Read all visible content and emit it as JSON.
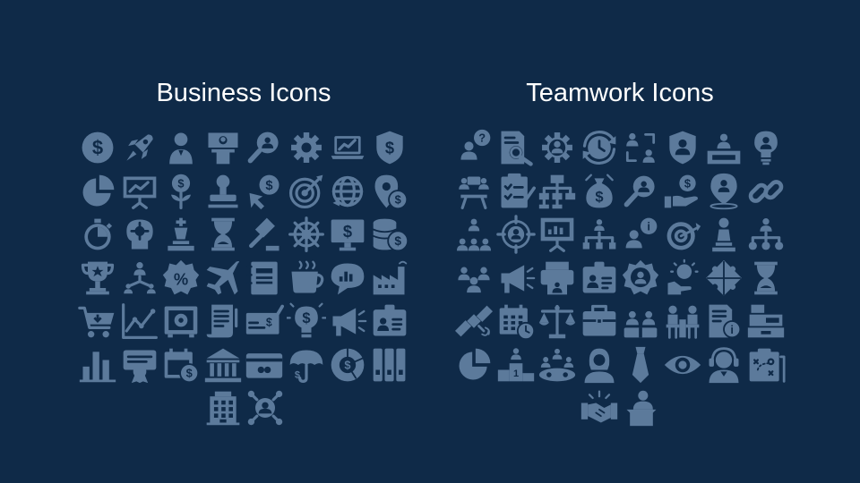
{
  "sections": {
    "business": {
      "title": "Business Icons",
      "icons": [
        "dollar-coin-icon",
        "rocket-icon",
        "businessman-icon",
        "presentation-speaker-icon",
        "search-user-icon",
        "gear-icon",
        "laptop-chart-icon",
        "dollar-shield-icon",
        "pie-chart-icon",
        "presentation-board-icon",
        "money-plant-icon",
        "stamp-icon",
        "dollar-cursor-icon",
        "target-icon",
        "global-network-icon",
        "dollar-location-icon",
        "stopwatch-icon",
        "brain-gear-icon",
        "chess-king-icon",
        "hourglass-icon",
        "gavel-icon",
        "ship-wheel-icon",
        "monitor-dollar-icon",
        "coin-stack-icon",
        "trophy-icon",
        "hierarchy-icon",
        "discount-badge-icon",
        "airplane-icon",
        "binder-icon",
        "coffee-cup-icon",
        "chat-bubble-chart-icon",
        "factory-icon",
        "shopping-cart-icon",
        "line-chart-icon",
        "safe-icon",
        "contract-scroll-icon",
        "bank-check-icon",
        "lightbulb-dollar-icon",
        "megaphone-icon",
        "id-card-icon",
        "bar-chart-icon",
        "certificate-icon",
        "calendar-dollar-icon",
        "bank-icon",
        "credit-card-icon",
        "umbrella-dollar-icon",
        "donut-dollar-icon",
        "filing-cabinet-icon",
        "office-building-icon",
        "user-network-icon"
      ]
    },
    "teamwork": {
      "title": "Teamwork Icons",
      "icons": [
        "user-question-icon",
        "document-search-icon",
        "gear-user-icon",
        "clock-cycle-icon",
        "user-exchange-icon",
        "shield-user-icon",
        "employee-desk-icon",
        "lightbulb-user-icon",
        "team-meeting-icon",
        "clipboard-checklist-icon",
        "organization-chart-icon",
        "money-bag-stopwatch-icon",
        "search-user-icon",
        "hand-dollar-icon",
        "location-user-icon",
        "chain-link-icon",
        "team-hierarchy-icon",
        "target-user-icon",
        "presentation-chart-icon",
        "network-user-icon",
        "user-info-icon",
        "target-arrow-icon",
        "chess-pawn-icon",
        "user-hierarchy-icon",
        "team-group-icon",
        "megaphone-icon",
        "printer-user-icon",
        "id-badge-icon",
        "badge-user-icon",
        "idea-hand-icon",
        "puzzle-icon",
        "hourglass-icon",
        "satellite-icon",
        "calendar-clock-icon",
        "balance-scale-icon",
        "briefcase-icon",
        "team-pair-icon",
        "office-chairs-icon",
        "document-info-icon",
        "cash-register-icon",
        "pie-chart-icon",
        "podium-winner-icon",
        "meeting-table-icon",
        "woman-user-icon",
        "necktie-icon",
        "eye-icon",
        "support-agent-icon",
        "strategy-board-icon",
        "handshake-icon",
        "speaker-podium-icon"
      ]
    }
  },
  "colors": {
    "background": "#0f2a48",
    "icon": "#5c7a9b",
    "title": "#ffffff"
  }
}
